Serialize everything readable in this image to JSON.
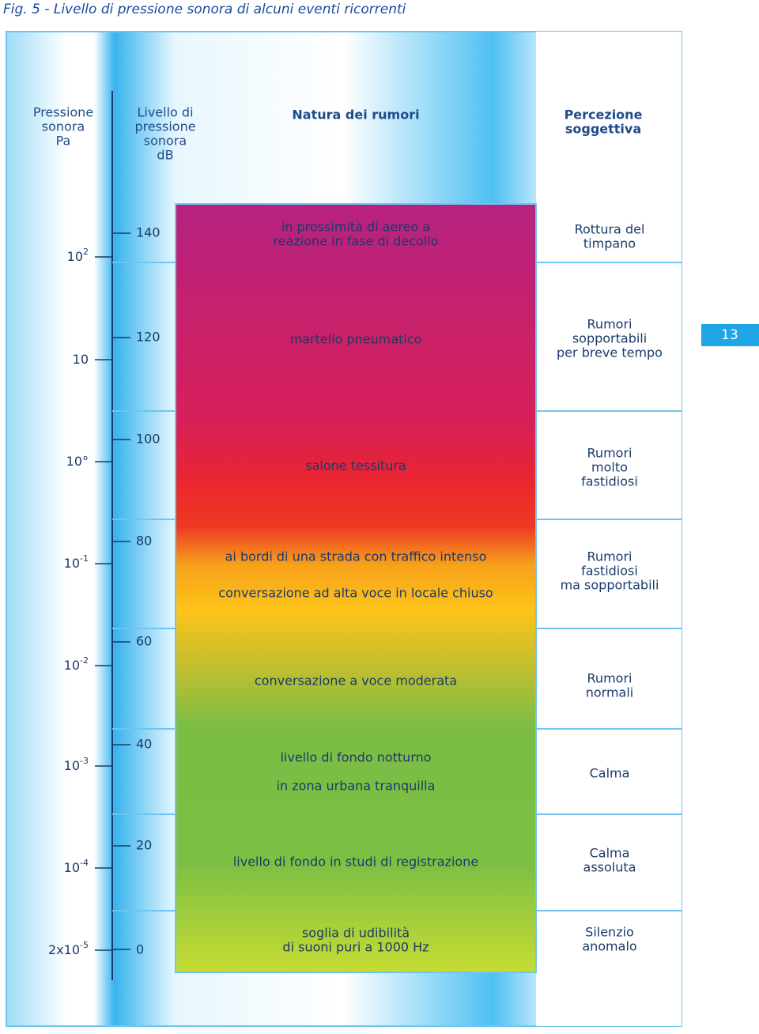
{
  "title": "Fig. 5 - Livello di pressione sonora di alcuni eventi ricorrenti",
  "headers": {
    "pa": [
      "Pressione",
      "sonora",
      "Pa"
    ],
    "db": [
      "Livello di",
      "pressione",
      "sonora",
      "dB"
    ],
    "noise": [
      "Natura dei rumori"
    ],
    "perception": [
      "Percezione",
      "soggettiva"
    ]
  },
  "rows": [
    {
      "pa": {
        "base": "10",
        "exp": "2"
      },
      "db": "140",
      "noise": [
        "in prossimità di aereo a",
        "reazione in fase di decollo"
      ],
      "perception": [
        "Rottura del",
        "timpano"
      ]
    },
    {
      "pa": {
        "base": "10",
        "exp": ""
      },
      "db": "120",
      "noise": [
        "martello pneumatico"
      ],
      "perception": [
        "Rumori",
        "sopportabili",
        "per breve tempo"
      ]
    },
    {
      "pa": {
        "base": "10°",
        "exp": ""
      },
      "db": "100",
      "noise": [
        "salone tessitura"
      ],
      "perception": [
        "Rumori",
        "molto",
        "fastidiosi"
      ]
    },
    {
      "pa": {
        "base": "10",
        "exp": "-1"
      },
      "db": "80",
      "noise": [
        "ai bordi di una strada con traffico intenso",
        "conversazione ad alta voce in locale chiuso"
      ],
      "perception": [
        "Rumori",
        "fastidiosi",
        "ma sopportabili"
      ]
    },
    {
      "pa": {
        "base": "10",
        "exp": "-2"
      },
      "db": "60",
      "noise": [
        "conversazione a voce moderata"
      ],
      "perception": [
        "Rumori",
        "normali"
      ]
    },
    {
      "pa": {
        "base": "10",
        "exp": "-3"
      },
      "db": "40",
      "noise": [
        "livello di fondo notturno",
        "in zona urbana tranquilla"
      ],
      "perception": [
        "Calma"
      ]
    },
    {
      "pa": {
        "base": "10",
        "exp": "-4"
      },
      "db": "20",
      "noise": [
        "livello di fondo in studi di registrazione"
      ],
      "perception": [
        "Calma",
        "assoluta"
      ]
    },
    {
      "pa": {
        "base": "2x10",
        "exp": "-5"
      },
      "db": "0",
      "noise": [
        "soglia di udibilità",
        "di suoni puri a 1000 Hz"
      ],
      "perception": [
        "Silenzio",
        "anomalo"
      ]
    }
  ],
  "page_number": "13"
}
